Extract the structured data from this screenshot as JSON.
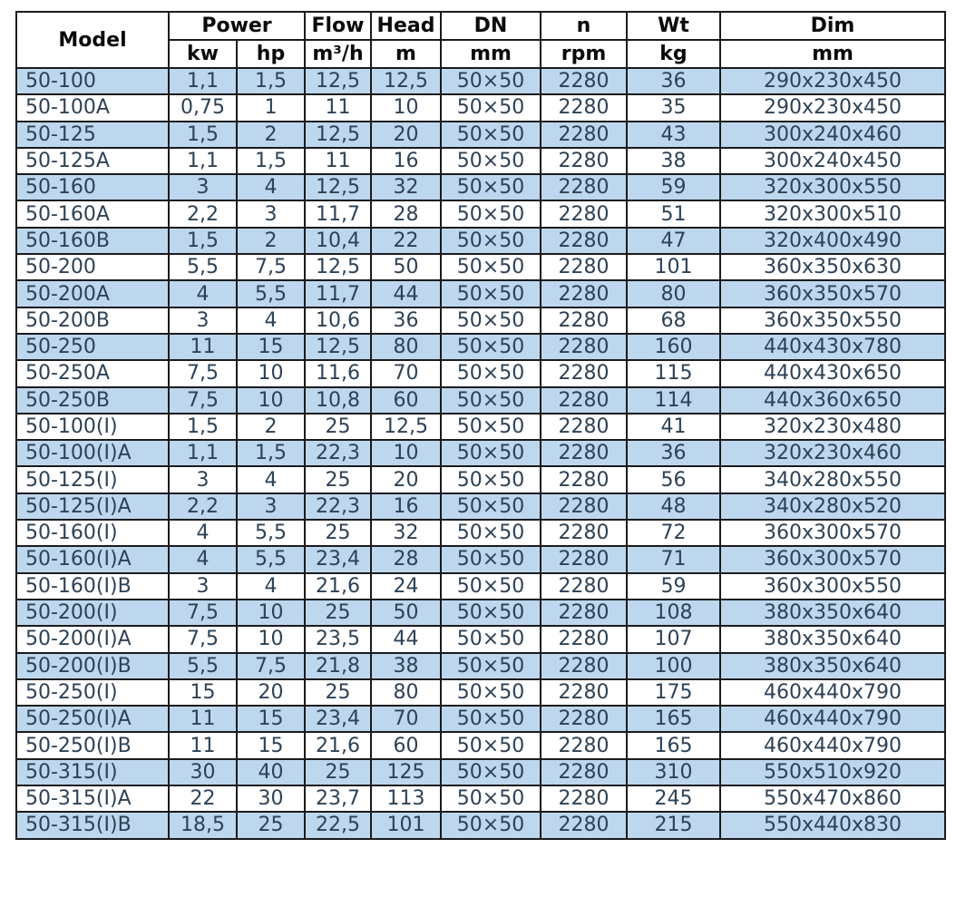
{
  "colors": {
    "row_band_blue": "#BDD7EE",
    "row_band_white": "#FFFFFF",
    "grid_border": "#1B1B1B",
    "data_text": "#2D4256",
    "header_text": "#0A0A0A"
  },
  "header": {
    "model": "Model",
    "power": "Power",
    "power_kw": "kw",
    "power_hp": "hp",
    "flow": "Flow",
    "flow_unit": "m³/h",
    "head": "Head",
    "head_unit": "m",
    "dn": "DN",
    "dn_unit": "mm",
    "n": "n",
    "n_unit": "rpm",
    "wt": "Wt",
    "wt_unit": "kg",
    "dim": "Dim",
    "dim_unit": "mm"
  },
  "chart_data": {
    "type": "table",
    "columns": [
      "Model",
      "Power kw",
      "Power hp",
      "Flow m³/h",
      "Head m",
      "DN mm",
      "n rpm",
      "Wt kg",
      "Dim mm"
    ],
    "rows": [
      [
        "50-100",
        "1,1",
        "1,5",
        "12,5",
        "12,5",
        "50×50",
        "2280",
        "36",
        "290x230x450"
      ],
      [
        "50-100A",
        "0,75",
        "1",
        "11",
        "10",
        "50×50",
        "2280",
        "35",
        "290x230x450"
      ],
      [
        "50-125",
        "1,5",
        "2",
        "12,5",
        "20",
        "50×50",
        "2280",
        "43",
        "300x240x460"
      ],
      [
        "50-125A",
        "1,1",
        "1,5",
        "11",
        "16",
        "50×50",
        "2280",
        "38",
        "300x240x450"
      ],
      [
        "50-160",
        "3",
        "4",
        "12,5",
        "32",
        "50×50",
        "2280",
        "59",
        "320x300x550"
      ],
      [
        "50-160A",
        "2,2",
        "3",
        "11,7",
        "28",
        "50×50",
        "2280",
        "51",
        "320x300x510"
      ],
      [
        "50-160B",
        "1,5",
        "2",
        "10,4",
        "22",
        "50×50",
        "2280",
        "47",
        "320x400x490"
      ],
      [
        "50-200",
        "5,5",
        "7,5",
        "12,5",
        "50",
        "50×50",
        "2280",
        "101",
        "360x350x630"
      ],
      [
        "50-200A",
        "4",
        "5,5",
        "11,7",
        "44",
        "50×50",
        "2280",
        "80",
        "360x350x570"
      ],
      [
        "50-200B",
        "3",
        "4",
        "10,6",
        "36",
        "50×50",
        "2280",
        "68",
        "360x350x550"
      ],
      [
        "50-250",
        "11",
        "15",
        "12,5",
        "80",
        "50×50",
        "2280",
        "160",
        "440x430x780"
      ],
      [
        "50-250A",
        "7,5",
        "10",
        "11,6",
        "70",
        "50×50",
        "2280",
        "115",
        "440x430x650"
      ],
      [
        "50-250B",
        "7,5",
        "10",
        "10,8",
        "60",
        "50×50",
        "2280",
        "114",
        "440x360x650"
      ],
      [
        "50-100(I)",
        "1,5",
        "2",
        "25",
        "12,5",
        "50×50",
        "2280",
        "41",
        "320x230x480"
      ],
      [
        "50-100(I)A",
        "1,1",
        "1,5",
        "22,3",
        "10",
        "50×50",
        "2280",
        "36",
        "320x230x460"
      ],
      [
        "50-125(I)",
        "3",
        "4",
        "25",
        "20",
        "50×50",
        "2280",
        "56",
        "340x280x550"
      ],
      [
        "50-125(I)A",
        "2,2",
        "3",
        "22,3",
        "16",
        "50×50",
        "2280",
        "48",
        "340x280x520"
      ],
      [
        "50-160(I)",
        "4",
        "5,5",
        "25",
        "32",
        "50×50",
        "2280",
        "72",
        "360x300x570"
      ],
      [
        "50-160(I)A",
        "4",
        "5,5",
        "23,4",
        "28",
        "50×50",
        "2280",
        "71",
        "360x300x570"
      ],
      [
        "50-160(I)B",
        "3",
        "4",
        "21,6",
        "24",
        "50×50",
        "2280",
        "59",
        "360x300x550"
      ],
      [
        "50-200(I)",
        "7,5",
        "10",
        "25",
        "50",
        "50×50",
        "2280",
        "108",
        "380x350x640"
      ],
      [
        "50-200(I)A",
        "7,5",
        "10",
        "23,5",
        "44",
        "50×50",
        "2280",
        "107",
        "380x350x640"
      ],
      [
        "50-200(I)B",
        "5,5",
        "7,5",
        "21,8",
        "38",
        "50×50",
        "2280",
        "100",
        "380x350x640"
      ],
      [
        "50-250(I)",
        "15",
        "20",
        "25",
        "80",
        "50×50",
        "2280",
        "175",
        "460x440x790"
      ],
      [
        "50-250(I)A",
        "11",
        "15",
        "23,4",
        "70",
        "50×50",
        "2280",
        "165",
        "460x440x790"
      ],
      [
        "50-250(I)B",
        "11",
        "15",
        "21,6",
        "60",
        "50×50",
        "2280",
        "165",
        "460x440x790"
      ],
      [
        "50-315(I)",
        "30",
        "40",
        "25",
        "125",
        "50×50",
        "2280",
        "310",
        "550x510x920"
      ],
      [
        "50-315(I)A",
        "22",
        "30",
        "23,7",
        "113",
        "50×50",
        "2280",
        "245",
        "550x470x860"
      ],
      [
        "50-315(I)B",
        "18,5",
        "25",
        "22,5",
        "101",
        "50×50",
        "2280",
        "215",
        "550x440x830"
      ]
    ]
  }
}
